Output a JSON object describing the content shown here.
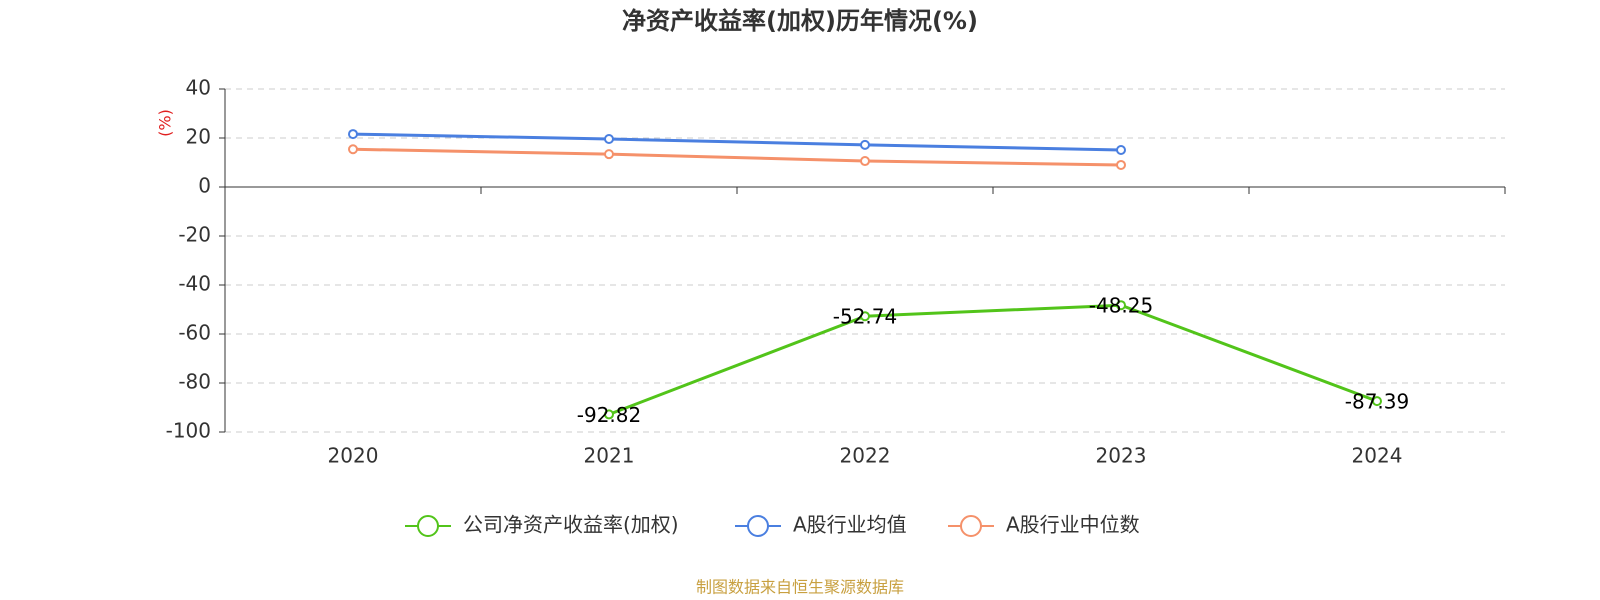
{
  "chart_data": {
    "type": "line",
    "title": "净资产收益率(加权)历年情况(%)",
    "y_label": "(%)",
    "categories": [
      "2020",
      "2021",
      "2022",
      "2023",
      "2024"
    ],
    "series": [
      {
        "name": "公司净资产收益率(加权)",
        "color": "#52c41a",
        "values": [
          null,
          -92.82,
          -52.74,
          -48.25,
          -87.39
        ],
        "data_labels": true
      },
      {
        "name": "A股行业均值",
        "color": "#4a7fe0",
        "values": [
          21.6,
          19.6,
          17.2,
          15.1,
          null
        ],
        "data_labels": false
      },
      {
        "name": "A股行业中位数",
        "color": "#f5916a",
        "values": [
          15.4,
          13.4,
          10.6,
          9.0,
          null
        ],
        "data_labels": false
      }
    ],
    "ylim": [
      -100,
      40
    ],
    "yticks": [
      40,
      20,
      0,
      -20,
      -40,
      -60,
      -80,
      -100
    ],
    "grid": true,
    "legend": "bottom",
    "source": "制图数据来自恒生聚源数据库"
  }
}
